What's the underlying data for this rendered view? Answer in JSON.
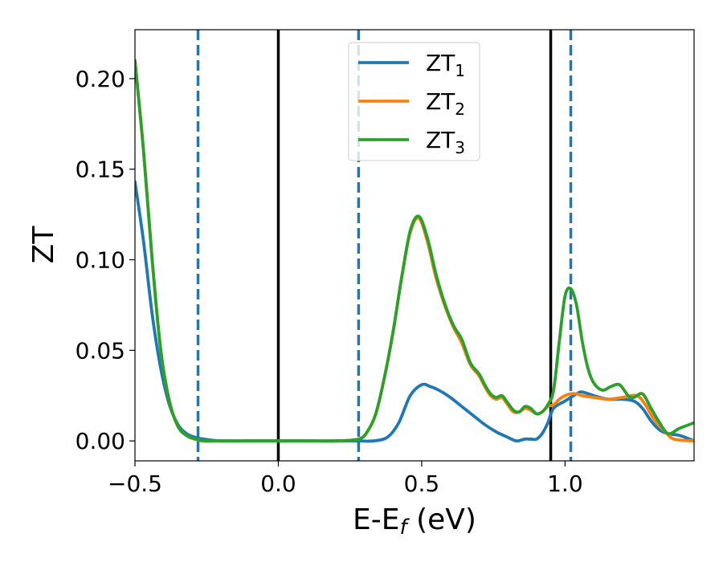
{
  "chart_data": {
    "type": "line",
    "xlabel": "E-E",
    "xlabel_sub": "f",
    "xlabel_unit": " (eV)",
    "ylabel": "ZT",
    "xlim": [
      -0.5,
      1.45
    ],
    "ylim": [
      -0.011,
      0.227
    ],
    "xticks": [
      {
        "value": -0.5,
        "label": "−0.5"
      },
      {
        "value": 0.0,
        "label": "0.0"
      },
      {
        "value": 0.5,
        "label": "0.5"
      },
      {
        "value": 1.0,
        "label": "1.0"
      }
    ],
    "yticks": [
      {
        "value": 0.0,
        "label": "0.00"
      },
      {
        "value": 0.05,
        "label": "0.05"
      },
      {
        "value": 0.1,
        "label": "0.10"
      },
      {
        "value": 0.15,
        "label": "0.15"
      },
      {
        "value": 0.2,
        "label": "0.20"
      }
    ],
    "vlines": [
      {
        "x": -0.28,
        "style": "dashed",
        "color": "#1f77b4"
      },
      {
        "x": 0.0,
        "style": "solid",
        "color": "#000000"
      },
      {
        "x": 0.28,
        "style": "dashed",
        "color": "#1f77b4"
      },
      {
        "x": 0.95,
        "style": "solid",
        "color": "#000000"
      },
      {
        "x": 1.02,
        "style": "dashed",
        "color": "#1f77b4"
      }
    ],
    "legend": {
      "position": "upper center"
    },
    "series": [
      {
        "name": "ZT",
        "name_sub": "1",
        "color": "#1f77b4",
        "x": [
          -0.5,
          -0.47,
          -0.44,
          -0.41,
          -0.38,
          -0.35,
          -0.32,
          -0.29,
          -0.26,
          -0.2,
          -0.1,
          0.0,
          0.1,
          0.2,
          0.28,
          0.33,
          0.38,
          0.42,
          0.46,
          0.5,
          0.53,
          0.56,
          0.6,
          0.64,
          0.68,
          0.72,
          0.76,
          0.8,
          0.83,
          0.86,
          0.88,
          0.9,
          0.92,
          0.94,
          0.96,
          1.0,
          1.04,
          1.06,
          1.1,
          1.15,
          1.2,
          1.24,
          1.27,
          1.3,
          1.33,
          1.36,
          1.4,
          1.45
        ],
        "y": [
          0.143,
          0.11,
          0.07,
          0.04,
          0.02,
          0.009,
          0.004,
          0.002,
          0.001,
          0.0,
          0.0,
          0.0,
          0.0,
          0.0,
          0.0,
          0.0,
          0.002,
          0.01,
          0.025,
          0.031,
          0.03,
          0.028,
          0.024,
          0.019,
          0.014,
          0.009,
          0.005,
          0.002,
          0.0,
          0.001,
          0.001,
          0.001,
          0.004,
          0.01,
          0.018,
          0.022,
          0.026,
          0.027,
          0.025,
          0.023,
          0.023,
          0.022,
          0.018,
          0.011,
          0.006,
          0.004,
          0.003,
          0.0
        ]
      },
      {
        "name": "ZT",
        "name_sub": "2",
        "color": "#ff7f0e",
        "x": [
          -0.5,
          -0.47,
          -0.44,
          -0.41,
          -0.38,
          -0.35,
          -0.32,
          -0.29,
          -0.26,
          -0.2,
          -0.1,
          0.0,
          0.1,
          0.2,
          0.28,
          0.31,
          0.34,
          0.37,
          0.4,
          0.43,
          0.46,
          0.49,
          0.52,
          0.55,
          0.58,
          0.61,
          0.64,
          0.67,
          0.7,
          0.72,
          0.74,
          0.76,
          0.78,
          0.8,
          0.82,
          0.84,
          0.86,
          0.88,
          0.9,
          0.92,
          0.94,
          0.96,
          0.98,
          1.0,
          1.02,
          1.04,
          1.06,
          1.1,
          1.15,
          1.2,
          1.25,
          1.28,
          1.31,
          1.35,
          1.38,
          1.45
        ],
        "y": [
          0.21,
          0.16,
          0.1,
          0.05,
          0.022,
          0.008,
          0.003,
          0.001,
          0.0,
          0.0,
          0.0,
          0.0,
          0.0,
          0.0,
          0.001,
          0.005,
          0.015,
          0.035,
          0.06,
          0.09,
          0.115,
          0.123,
          0.11,
          0.09,
          0.075,
          0.063,
          0.054,
          0.042,
          0.036,
          0.03,
          0.025,
          0.023,
          0.024,
          0.02,
          0.016,
          0.016,
          0.018,
          0.017,
          0.015,
          0.016,
          0.019,
          0.02,
          0.023,
          0.025,
          0.026,
          0.026,
          0.025,
          0.024,
          0.023,
          0.024,
          0.025,
          0.02,
          0.012,
          0.005,
          0.001,
          0.0
        ]
      },
      {
        "name": "ZT",
        "name_sub": "3",
        "color": "#2ca02c",
        "x": [
          -0.5,
          -0.47,
          -0.44,
          -0.41,
          -0.38,
          -0.35,
          -0.32,
          -0.29,
          -0.26,
          -0.2,
          -0.1,
          0.0,
          0.1,
          0.2,
          0.28,
          0.31,
          0.34,
          0.37,
          0.4,
          0.43,
          0.46,
          0.49,
          0.52,
          0.55,
          0.58,
          0.61,
          0.64,
          0.67,
          0.7,
          0.72,
          0.74,
          0.76,
          0.78,
          0.8,
          0.82,
          0.84,
          0.86,
          0.88,
          0.9,
          0.92,
          0.94,
          0.96,
          0.98,
          1.0,
          1.02,
          1.04,
          1.06,
          1.08,
          1.1,
          1.13,
          1.16,
          1.19,
          1.22,
          1.24,
          1.27,
          1.3,
          1.33,
          1.36,
          1.4,
          1.45
        ],
        "y": [
          0.21,
          0.16,
          0.1,
          0.05,
          0.022,
          0.008,
          0.003,
          0.001,
          0.0,
          0.0,
          0.0,
          0.0,
          0.0,
          0.0,
          0.001,
          0.005,
          0.015,
          0.035,
          0.06,
          0.09,
          0.116,
          0.124,
          0.112,
          0.092,
          0.076,
          0.064,
          0.056,
          0.043,
          0.037,
          0.031,
          0.026,
          0.024,
          0.025,
          0.021,
          0.017,
          0.016,
          0.019,
          0.018,
          0.015,
          0.016,
          0.02,
          0.028,
          0.055,
          0.08,
          0.084,
          0.075,
          0.055,
          0.04,
          0.032,
          0.028,
          0.03,
          0.031,
          0.025,
          0.024,
          0.026,
          0.018,
          0.01,
          0.004,
          0.007,
          0.01
        ]
      }
    ]
  }
}
